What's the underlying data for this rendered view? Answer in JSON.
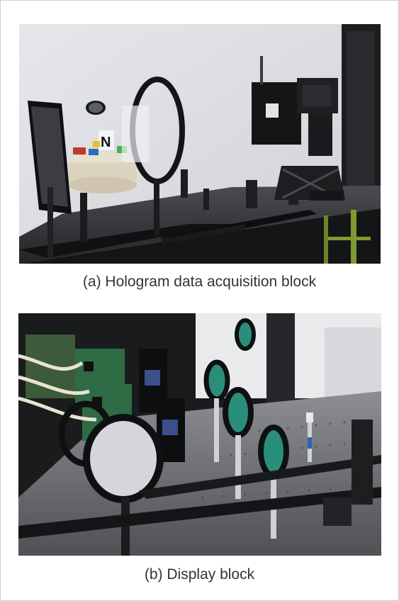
{
  "figure": {
    "panel_a": {
      "caption": "(a) Hologram data acquisition block",
      "image_description": "photo of an optical table with a monitor, a toy model scene with an N card, a ring lens mount, rails and a black camera on a lab jack"
    },
    "panel_b": {
      "caption": "(b) Display block",
      "image_description": "photo of optical display setup with circuit boards, cables, large lenses on posts and rails on a perforated optical table"
    }
  },
  "colors": {
    "background": "#ffffff",
    "border": "#cfcfcf",
    "caption_text": "#333333"
  }
}
